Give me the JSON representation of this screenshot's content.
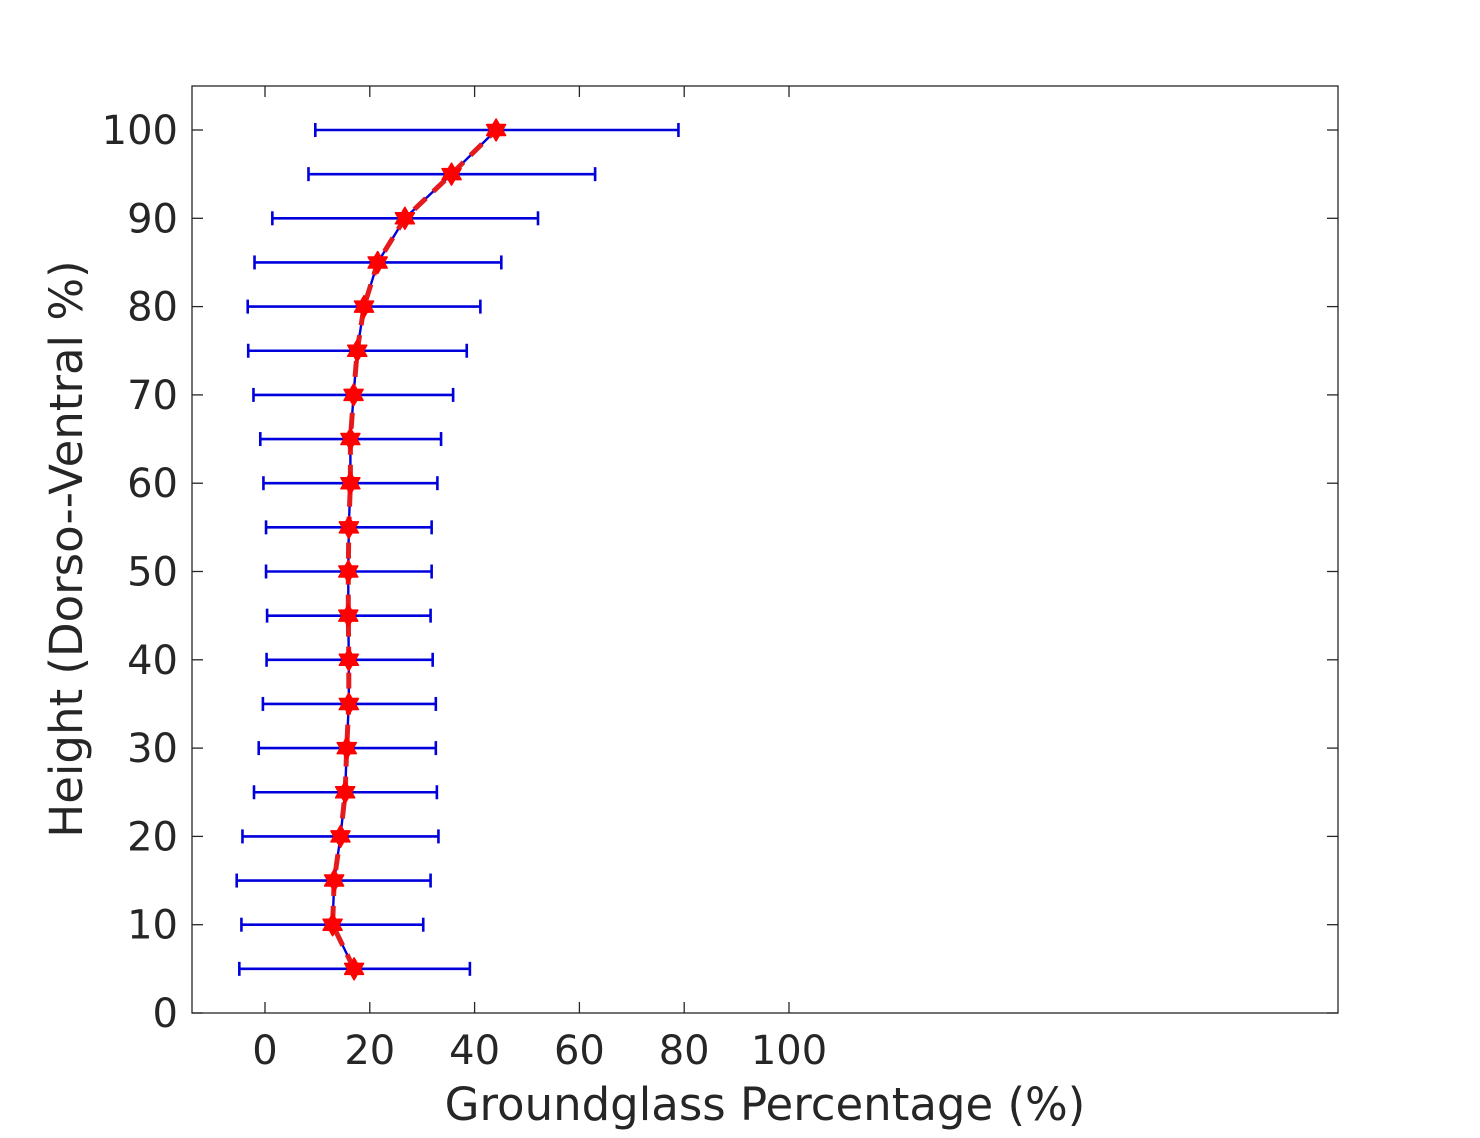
{
  "chart_data": {
    "type": "line",
    "orientation": "horizontal-errorbar-profile",
    "title": "",
    "xlabel": "Groundglass Percentage (%)",
    "ylabel": "Height (Dorso--Ventral %)",
    "xlim": [
      -7,
      102
    ],
    "ylim": [
      0,
      105
    ],
    "xticks": [
      0,
      20,
      40,
      60,
      80,
      100
    ],
    "yticks": [
      0,
      10,
      20,
      30,
      40,
      50,
      60,
      70,
      80,
      90,
      100
    ],
    "xtick_labels": [
      "0",
      "20",
      "40",
      "60",
      "80",
      "100"
    ],
    "ytick_labels": [
      "0",
      "10",
      "20",
      "30",
      "40",
      "50",
      "60",
      "70",
      "80",
      "90",
      "100"
    ],
    "grid": false,
    "box": true,
    "legend": "none",
    "series": [
      {
        "marker": "hexagram",
        "line_color": "#0000dd",
        "errorbar_color": "#0000dd",
        "marker_color": "#ff0000",
        "dash_overlay_color": "#e41a1c",
        "points": [
          {
            "height": 5,
            "mean": 17.0,
            "xlow": -4.9,
            "xhigh": 39.1
          },
          {
            "height": 10,
            "mean": 12.9,
            "xlow": -4.5,
            "xhigh": 30.2
          },
          {
            "height": 15,
            "mean": 13.2,
            "xlow": -5.4,
            "xhigh": 31.6
          },
          {
            "height": 20,
            "mean": 14.4,
            "xlow": -4.3,
            "xhigh": 33.1
          },
          {
            "height": 25,
            "mean": 15.3,
            "xlow": -2.1,
            "xhigh": 32.8
          },
          {
            "height": 30,
            "mean": 15.6,
            "xlow": -1.2,
            "xhigh": 32.6
          },
          {
            "height": 35,
            "mean": 16.0,
            "xlow": -0.4,
            "xhigh": 32.6
          },
          {
            "height": 40,
            "mean": 16.0,
            "xlow": 0.3,
            "xhigh": 32.0
          },
          {
            "height": 45,
            "mean": 15.9,
            "xlow": 0.4,
            "xhigh": 31.6
          },
          {
            "height": 50,
            "mean": 15.9,
            "xlow": 0.2,
            "xhigh": 31.8
          },
          {
            "height": 55,
            "mean": 16.0,
            "xlow": 0.2,
            "xhigh": 31.8
          },
          {
            "height": 60,
            "mean": 16.3,
            "xlow": -0.3,
            "xhigh": 32.9
          },
          {
            "height": 65,
            "mean": 16.3,
            "xlow": -0.9,
            "xhigh": 33.6
          },
          {
            "height": 70,
            "mean": 16.9,
            "xlow": -2.2,
            "xhigh": 35.9
          },
          {
            "height": 75,
            "mean": 17.6,
            "xlow": -3.2,
            "xhigh": 38.5
          },
          {
            "height": 80,
            "mean": 18.9,
            "xlow": -3.3,
            "xhigh": 41.1
          },
          {
            "height": 85,
            "mean": 21.5,
            "xlow": -2.0,
            "xhigh": 45.1
          },
          {
            "height": 90,
            "mean": 26.7,
            "xlow": 1.4,
            "xhigh": 52.1
          },
          {
            "height": 95,
            "mean": 35.6,
            "xlow": 8.3,
            "xhigh": 63.0
          },
          {
            "height": 100,
            "mean": 44.1,
            "xlow": 9.6,
            "xhigh": 78.9
          }
        ]
      }
    ]
  }
}
